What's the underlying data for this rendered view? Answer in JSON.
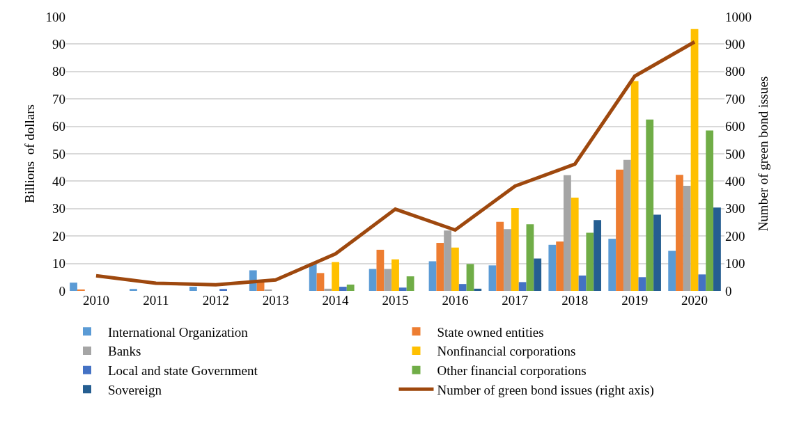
{
  "chart_data": {
    "type": "bar",
    "ylabel": "Billions  of dollars",
    "y2label": "Number of green bond issues",
    "categories": [
      "2010",
      "2011",
      "2012",
      "2013",
      "2014",
      "2015",
      "2016",
      "2017",
      "2018",
      "2019",
      "2020"
    ],
    "series": [
      {
        "name": "International Organization",
        "color": "#5b9bd5",
        "values": [
          3,
          0.7,
          1.5,
          7.5,
          10,
          8,
          10.8,
          9.3,
          16.8,
          19,
          14.6
        ]
      },
      {
        "name": "State owned entities",
        "color": "#ed7d31",
        "values": [
          0.5,
          0,
          0,
          3.5,
          6.5,
          15,
          17.5,
          25.2,
          18,
          44.2,
          42.3
        ]
      },
      {
        "name": "Banks",
        "color": "#a5a5a5",
        "values": [
          0,
          0,
          0,
          0.5,
          0.8,
          8,
          22,
          22.5,
          42.2,
          47.8,
          38.3
        ]
      },
      {
        "name": "Nonfinancial corporations",
        "color": "#ffc000",
        "values": [
          0,
          0,
          0,
          0,
          10.5,
          11.5,
          15.8,
          30.2,
          34,
          76.5,
          95.5
        ]
      },
      {
        "name": "Local and state Government",
        "color": "#4472c4",
        "values": [
          0,
          0,
          0.7,
          0,
          1.5,
          1.2,
          2.5,
          3.2,
          5.6,
          5,
          6
        ]
      },
      {
        "name": "Other financial corporations",
        "color": "#70ad47",
        "values": [
          0,
          0,
          0,
          0,
          2.3,
          5.3,
          9.8,
          24.3,
          21.2,
          62.5,
          58.5
        ]
      },
      {
        "name": "Sovereign",
        "color": "#255e91",
        "values": [
          0,
          0,
          0,
          0,
          0,
          0,
          0.8,
          11.8,
          25.8,
          27.8,
          30.4
        ]
      },
      {
        "name": "Number of green bond issues (right axis)",
        "type": "line",
        "axis": "y2",
        "color": "#9e480e",
        "values": [
          55,
          28,
          22,
          40,
          135,
          298,
          222,
          382,
          462,
          783,
          908
        ]
      }
    ],
    "ylim": [
      0,
      100
    ],
    "yticks": [
      0,
      10,
      20,
      30,
      40,
      50,
      60,
      70,
      80,
      90,
      100
    ],
    "y2lim": [
      0,
      1000
    ],
    "y2ticks": [
      0,
      100,
      200,
      300,
      400,
      500,
      600,
      700,
      800,
      900,
      1000
    ],
    "grid": "y",
    "legend": "bottom",
    "marker": "none",
    "line_style": "solid"
  }
}
